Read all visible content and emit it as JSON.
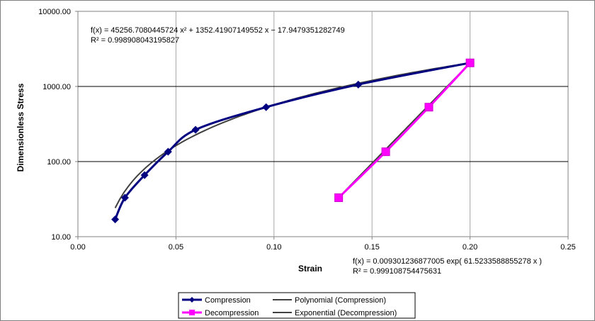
{
  "chart_data": {
    "type": "scatter",
    "xlabel": "Strain",
    "ylabel": "Dimensionless Stress",
    "xlim": [
      0,
      0.25
    ],
    "ylim": [
      10,
      10000
    ],
    "yscale": "log",
    "xticks": [
      "0.00",
      "0.05",
      "0.10",
      "0.15",
      "0.20",
      "0.25"
    ],
    "yticks": [
      "10.00",
      "100.00",
      "1000.00",
      "10000.00"
    ],
    "grid": true,
    "legend_position": "bottom",
    "series": [
      {
        "name": "Compression",
        "color": "#000080",
        "marker": "diamond",
        "x": [
          0.019,
          0.024,
          0.034,
          0.046,
          0.06,
          0.096,
          0.143,
          0.2
        ],
        "y": [
          17,
          33,
          66,
          135,
          265,
          530,
          1060,
          2060
        ]
      },
      {
        "name": "Decompression",
        "color": "#ff00ff",
        "marker": "square",
        "x": [
          0.133,
          0.157,
          0.179,
          0.2
        ],
        "y": [
          33,
          135,
          530,
          2060
        ]
      }
    ],
    "trendlines": [
      {
        "name": "Polynomial (Compression)",
        "color": "#404040",
        "type": "polynomial",
        "coefficients": [
          45256.7080445724,
          1352.41907149552,
          -17.9479351282749
        ],
        "x_range": [
          0.019,
          0.2
        ],
        "equation": "f(x) = 45256.7080445724 x² + 1352.41907149552 x − 17.9479351282749",
        "r2": "R² = 0.998908043195827"
      },
      {
        "name": "Exponential (Decompression)",
        "color": "#404040",
        "type": "exponential",
        "a": 0.009301236877005,
        "b": 61.5233588855278,
        "x_range": [
          0.133,
          0.2
        ],
        "equation": "f(x) = 0.009301236877005 exp( 61.5233588855278 x )",
        "r2": "R² = 0.999108754475631"
      }
    ]
  }
}
